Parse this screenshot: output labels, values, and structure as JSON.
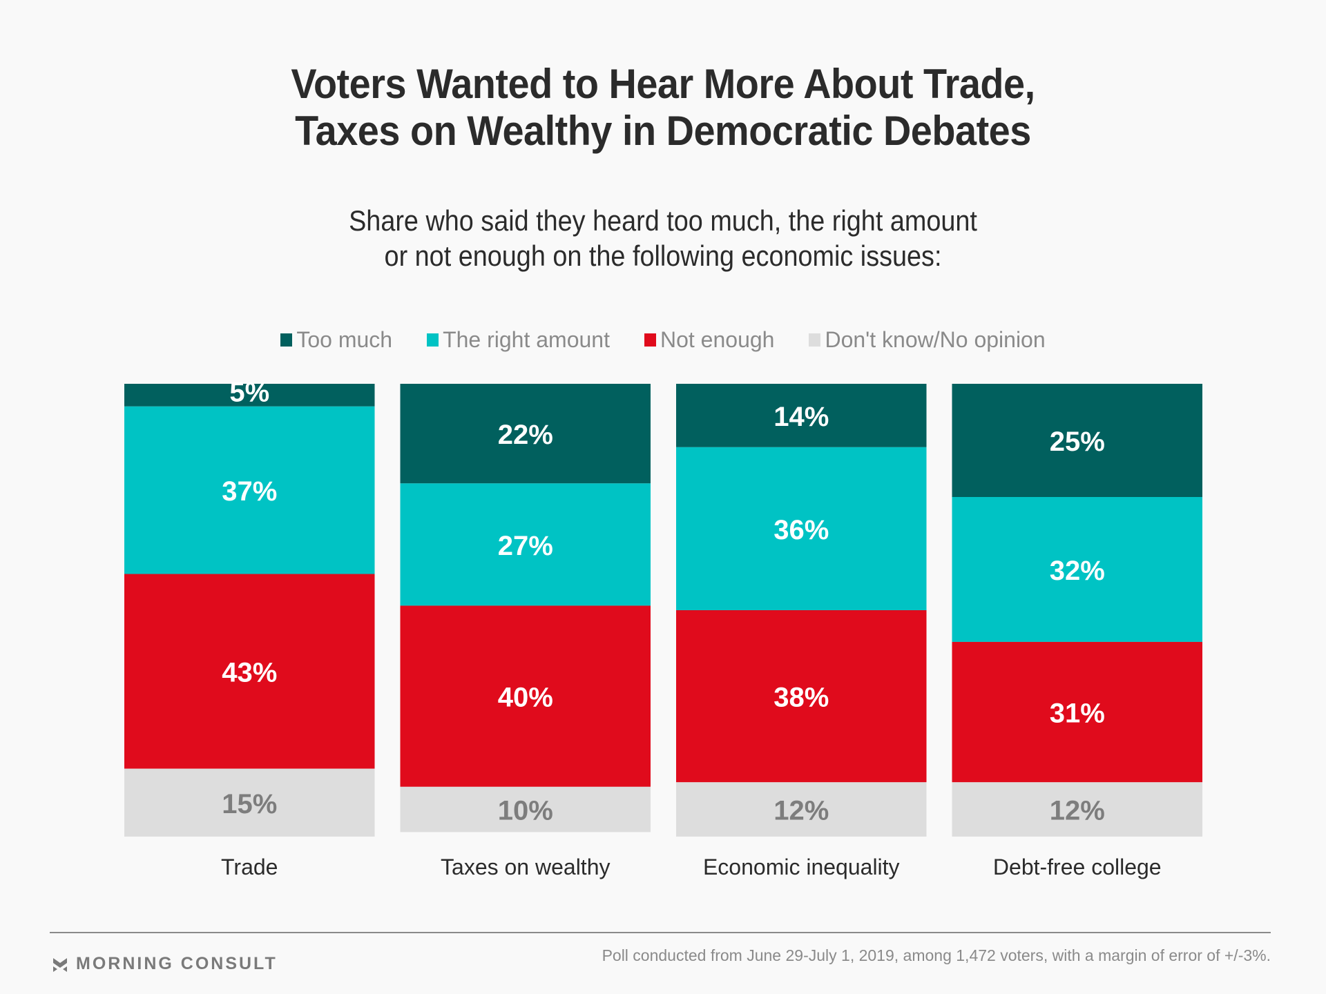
{
  "title_lines": [
    "Voters Wanted to Hear More About Trade,",
    "Taxes on Wealthy in Democratic Debates"
  ],
  "subtitle_lines": [
    "Share who said they heard too much, the right amount",
    "or not enough on the following economic issues:"
  ],
  "footer": {
    "brand": "MORNING CONSULT",
    "brand_icon": "morning-consult-chevron-logo",
    "note": "Poll conducted from June 29-July 1, 2019, among 1,472 voters, with a margin of error of +/-3%."
  },
  "chart_data": {
    "type": "bar",
    "orientation": "vertical",
    "stacked": true,
    "normalized_percent": true,
    "title": "Voters Wanted to Hear More About Trade, Taxes on Wealthy in Democratic Debates",
    "subtitle": "Share who said they heard too much, the right amount or not enough on the following economic issues:",
    "xlabel": "",
    "ylabel": "",
    "ylim": [
      0,
      100
    ],
    "grid": false,
    "legend_position": "top-center",
    "categories": [
      "Trade",
      "Taxes on wealthy",
      "Economic inequality",
      "Debt-free college"
    ],
    "series": [
      {
        "name": "Too much",
        "color": "#01605e",
        "label_color": "#ffffff",
        "values": [
          5,
          22,
          14,
          25
        ]
      },
      {
        "name": "The right amount",
        "color": "#00c3c4",
        "label_color": "#ffffff",
        "values": [
          37,
          27,
          36,
          32
        ]
      },
      {
        "name": "Not enough",
        "color": "#e00b1c",
        "label_color": "#ffffff",
        "values": [
          43,
          40,
          38,
          31
        ]
      },
      {
        "name": "Don't know/No opinion",
        "color": "#dddddd",
        "label_color": "#7d7d7d",
        "values": [
          15,
          10,
          12,
          12
        ]
      }
    ],
    "value_suffix": "%"
  }
}
